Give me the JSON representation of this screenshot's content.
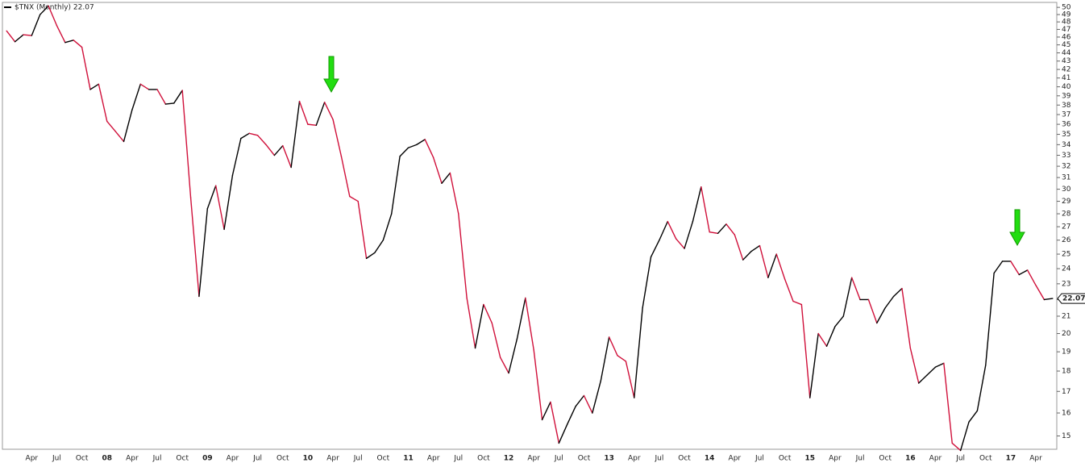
{
  "chart_data": {
    "type": "line",
    "categories": [
      null,
      null,
      null,
      "Apr",
      null,
      null,
      "Jul",
      null,
      null,
      "Oct",
      null,
      null,
      "08",
      null,
      null,
      "Apr",
      null,
      null,
      "Jul",
      null,
      null,
      "Oct",
      null,
      null,
      "09",
      null,
      null,
      "Apr",
      null,
      null,
      "Jul",
      null,
      null,
      "Oct",
      null,
      null,
      "10",
      null,
      null,
      "Apr",
      null,
      null,
      "Jul",
      null,
      null,
      "Oct",
      null,
      null,
      "11",
      null,
      null,
      "Apr",
      null,
      null,
      "Jul",
      null,
      null,
      "Oct",
      null,
      null,
      "12",
      null,
      null,
      "Apr",
      null,
      null,
      "Jul",
      null,
      null,
      "Oct",
      null,
      null,
      "13",
      null,
      null,
      "Apr",
      null,
      null,
      "Jul",
      null,
      null,
      "Oct",
      null,
      null,
      "14",
      null,
      null,
      "Apr",
      null,
      null,
      "Jul",
      null,
      null,
      "Oct",
      null,
      null,
      "15",
      null,
      null,
      "Apr",
      null,
      null,
      "Jul",
      null,
      null,
      "Oct",
      null,
      null,
      "16",
      null,
      null,
      "Apr",
      null,
      null,
      "Jul",
      null,
      null,
      "Oct",
      null,
      null,
      "17",
      null,
      null,
      "Apr",
      null,
      null
    ],
    "series": [
      {
        "name": "$TNX (Monthly) 22.07",
        "up_color": "#000000",
        "down_color": "#d0103a",
        "last_label": "22.07",
        "values": [
          46.8,
          45.4,
          46.3,
          46.2,
          49.0,
          50.2,
          47.5,
          45.3,
          45.6,
          44.7,
          39.7,
          40.3,
          36.3,
          35.3,
          34.3,
          37.5,
          40.3,
          39.7,
          39.7,
          38.1,
          38.2,
          39.6,
          29.3,
          22.2,
          28.4,
          30.3,
          26.8,
          31.2,
          34.6,
          35.1,
          34.9,
          34.0,
          33.0,
          33.9,
          31.9,
          38.4,
          36.0,
          35.9,
          38.3,
          36.5,
          32.9,
          29.4,
          29.0,
          24.7,
          25.1,
          26.0,
          28.0,
          32.9,
          33.7,
          34.0,
          34.5,
          32.8,
          30.5,
          31.4,
          28.0,
          22.1,
          19.2,
          21.7,
          20.6,
          18.7,
          17.9,
          19.7,
          22.1,
          19.1,
          15.7,
          16.5,
          14.7,
          15.5,
          16.3,
          16.8,
          16.0,
          17.5,
          19.8,
          18.8,
          18.5,
          16.7,
          21.5,
          24.8,
          26.0,
          27.4,
          26.1,
          25.4,
          27.4,
          30.2,
          26.6,
          26.5,
          27.2,
          26.4,
          24.6,
          25.2,
          25.6,
          23.4,
          25.0,
          23.3,
          21.9,
          21.7,
          16.7,
          20.0,
          19.3,
          20.4,
          21.0,
          23.4,
          22.0,
          22.0,
          20.6,
          21.5,
          22.2,
          22.7,
          19.2,
          17.4,
          17.8,
          18.2,
          18.4,
          14.7,
          14.4,
          15.6,
          16.1,
          18.3,
          23.7,
          24.5,
          24.5,
          23.6,
          23.9,
          22.9,
          22.0,
          22.07
        ]
      }
    ],
    "log_scale": true,
    "ylim": [
      14.45,
      50.7
    ],
    "yticks": [
      15,
      16,
      17,
      18,
      19,
      20,
      21,
      22,
      23,
      24,
      25,
      26,
      27,
      28,
      29,
      30,
      31,
      32,
      33,
      34,
      35,
      36,
      37,
      38,
      39,
      40,
      41,
      42,
      43,
      44,
      45,
      46,
      47,
      48,
      49,
      50
    ],
    "grid": false
  }
}
